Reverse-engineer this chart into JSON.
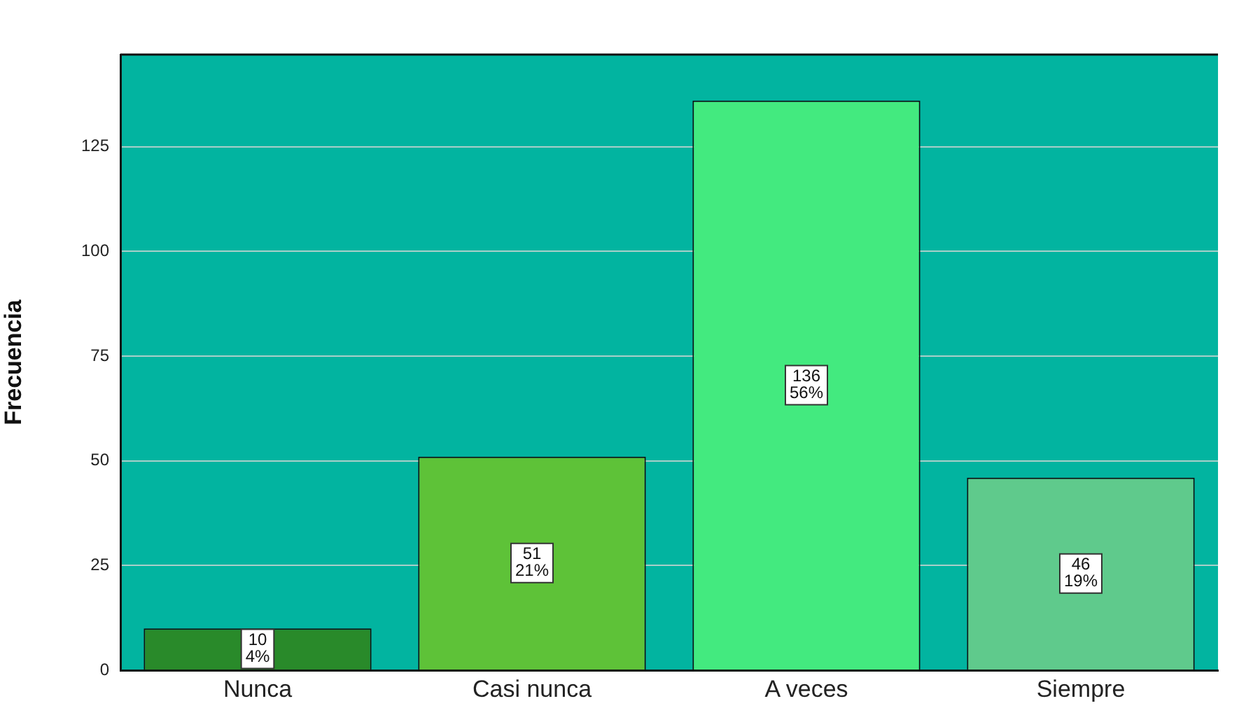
{
  "chart_data": {
    "type": "bar",
    "ylabel": "Frecuencia",
    "categories": [
      "Nunca",
      "Casi nunca",
      "A veces",
      "Siempre"
    ],
    "values": [
      10,
      51,
      136,
      46
    ],
    "colors": [
      "#298a2a",
      "#5ec238",
      "#43ea7f",
      "#5fca8c"
    ],
    "value_labels": [
      "10\n4%",
      "51\n21%",
      "136\n56%",
      "46\n19%"
    ],
    "ylim": [
      0,
      147
    ],
    "yticks": [
      0,
      25,
      50,
      75,
      100,
      125
    ],
    "grid": "y"
  }
}
